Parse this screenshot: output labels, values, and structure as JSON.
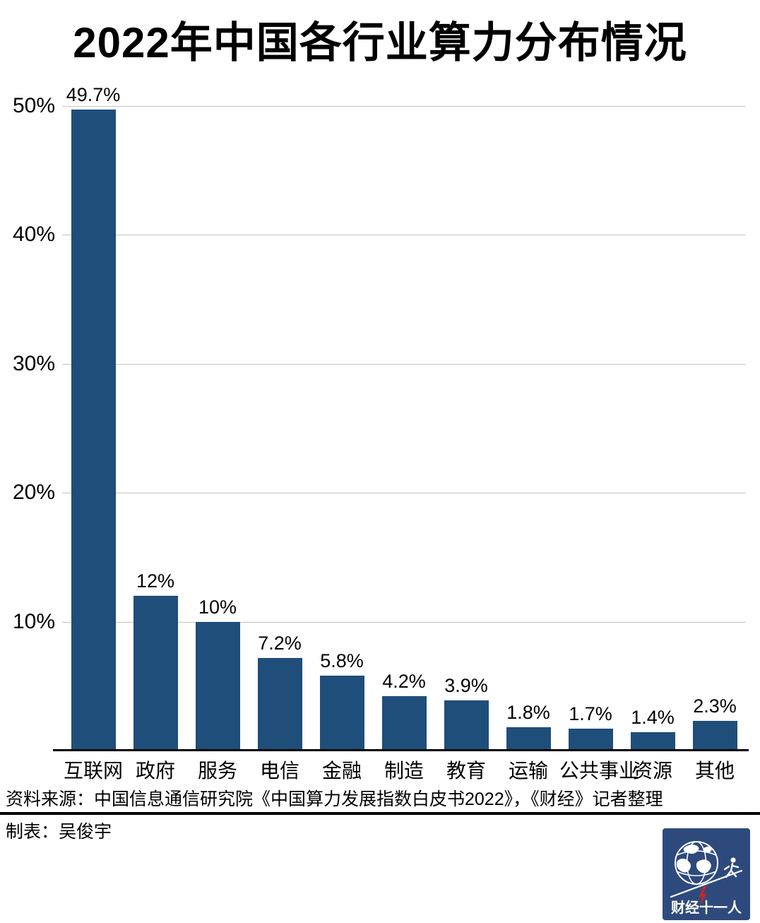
{
  "title": "2022年中国各行业算力分布情况",
  "chart_data": {
    "type": "bar",
    "title": "2022年中国各行业算力分布情况",
    "categories": [
      "互联网",
      "政府",
      "服务",
      "电信",
      "金融",
      "制造",
      "教育",
      "运输",
      "公共事业",
      "资源",
      "其他"
    ],
    "values": [
      49.7,
      12,
      10,
      7.2,
      5.8,
      4.2,
      3.9,
      1.8,
      1.7,
      1.4,
      2.3
    ],
    "value_labels": [
      "49.7%",
      "12%",
      "10%",
      "7.2%",
      "5.8%",
      "4.2%",
      "3.9%",
      "1.8%",
      "1.7%",
      "1.4%",
      "2.3%"
    ],
    "xlabel": "",
    "ylabel": "",
    "ylim": [
      0,
      50
    ],
    "yticks": [
      10,
      20,
      30,
      40,
      50
    ],
    "ytick_labels": [
      "10%",
      "20%",
      "30%",
      "40%",
      "50%"
    ],
    "grid": true,
    "legend": false,
    "bar_color": "#1f4e7b",
    "gridline_color": "#c4c4c4"
  },
  "footer": {
    "source": "资料来源：中国信息通信研究院《中国算力发展指数白皮书2022》，《财经》记者整理",
    "credit": "制表：吴俊宇"
  },
  "logo": {
    "text": "财经十一人",
    "bg_color": "#2e4a7d",
    "bolt_color": "#c1272d"
  }
}
